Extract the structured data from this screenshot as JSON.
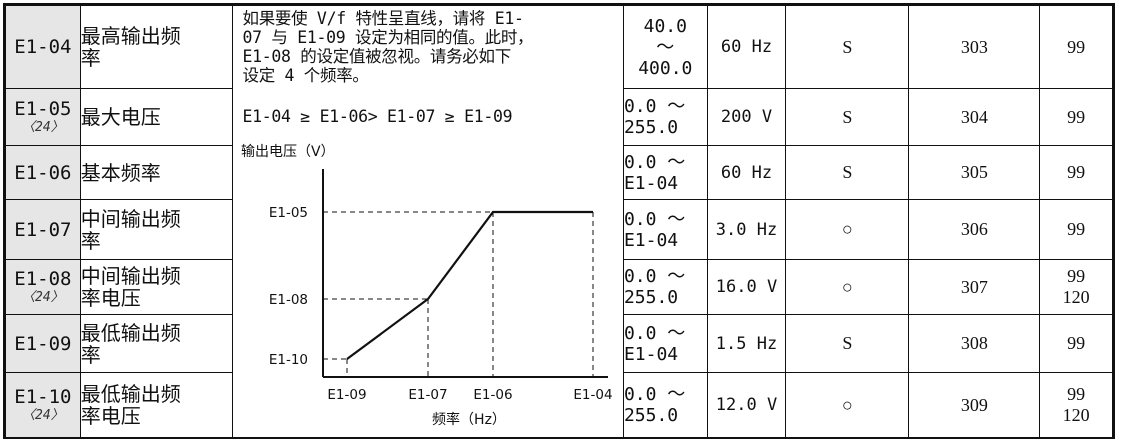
{
  "description": {
    "text": "如果要使 V/f 特性呈直线，请将 E1-\n07 与 E1-09 设定为相同的值。此时，\nE1-08 的设定值被忽视。请务必如下\n设定 4 个频率。",
    "formula": "E1-04 ≥ E1-06> E1-07 ≥ E1-09"
  },
  "chart_data": {
    "type": "line",
    "ylabel": "输出电压（V）",
    "xlabel": "频率（Hz）",
    "x_ticks": [
      "E1-09",
      "E1-07",
      "E1-06",
      "E1-04"
    ],
    "y_ticks": [
      "E1-10",
      "E1-08",
      "E1-05"
    ],
    "series": [
      {
        "x": [
          "E1-09",
          "E1-07",
          "E1-06",
          "E1-04"
        ],
        "y": [
          "E1-10",
          "E1-08",
          "E1-05",
          "E1-05"
        ]
      }
    ],
    "grid": false
  },
  "rows": [
    {
      "code": "E1-04",
      "note": "",
      "name": "最高输出频\n率",
      "range_top": "40.0",
      "range_mid": "～",
      "range_bot": "400.0",
      "centered": true,
      "default": "60 Hz",
      "change": "S",
      "address": "303",
      "group": "99"
    },
    {
      "code": "E1-05",
      "note": "〈24〉",
      "name": "最大电压",
      "range_top": "0.0 ～",
      "range_bot": "255.0",
      "default": "200 V",
      "change": "S",
      "address": "304",
      "group": "99"
    },
    {
      "code": "E1-06",
      "note": "",
      "name": "基本频率",
      "range_top": "0.0 ～",
      "range_bot": "E1-04",
      "default": "60 Hz",
      "change": "S",
      "address": "305",
      "group": "99"
    },
    {
      "code": "E1-07",
      "note": "",
      "name": "中间输出频\n率",
      "range_top": "0.0  ～",
      "range_bot": "E1-04",
      "default": "3.0 Hz",
      "change": "○",
      "address": "306",
      "group": "99"
    },
    {
      "code": "E1-08",
      "note": "〈24〉",
      "name": "中间输出频\n率电压",
      "range_top": "0.0 ～",
      "range_bot": "255.0",
      "default": "16.0 V",
      "change": "○",
      "address": "307",
      "group": "99\n120"
    },
    {
      "code": "E1-09",
      "note": "",
      "name": "最低输出频\n率",
      "range_top": "0.0  ～",
      "range_bot": "E1-04",
      "default": "1.5 Hz",
      "change": "S",
      "address": "308",
      "group": "99"
    },
    {
      "code": "E1-10",
      "note": "〈24〉",
      "name": "最低输出频\n率电压",
      "range_top": "0.0 ～",
      "range_bot": "255.0",
      "default": "12.0 V",
      "change": "○",
      "address": "309",
      "group": "99\n120"
    }
  ]
}
